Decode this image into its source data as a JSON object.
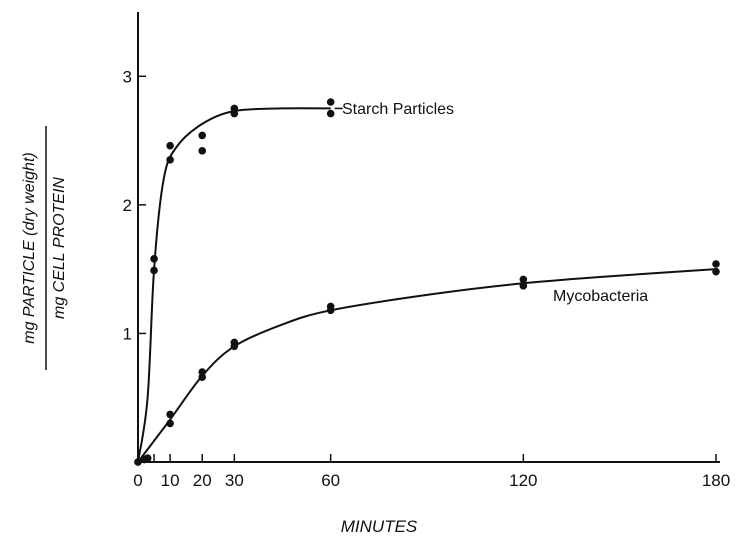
{
  "chart_data": {
    "type": "scatter",
    "title": "",
    "xlabel": "MINUTES",
    "ylabel_numerator": "mg PARTICLE (dry weight)",
    "ylabel_denominator": "mg CELL PROTEIN",
    "xlim": [
      0,
      180
    ],
    "ylim": [
      0,
      3.5
    ],
    "xticks": [
      0,
      5,
      10,
      20,
      30,
      60,
      120,
      180
    ],
    "xtick_labels": [
      "0",
      "",
      "10",
      "20",
      "30",
      "60",
      "120",
      "180"
    ],
    "yticks": [
      1,
      2,
      3
    ],
    "ytick_labels": [
      "1",
      "2",
      "3"
    ],
    "grid": false,
    "legend": "none",
    "series": [
      {
        "name": "Starch Particles",
        "points": [
          [
            0,
            0
          ],
          [
            2,
            0.02
          ],
          [
            3,
            0.03
          ],
          [
            5,
            1.58
          ],
          [
            5,
            1.49
          ],
          [
            10,
            2.46
          ],
          [
            10,
            2.35
          ],
          [
            20,
            2.54
          ],
          [
            20,
            2.42
          ],
          [
            30,
            2.75
          ],
          [
            30,
            2.71
          ],
          [
            60,
            2.8
          ],
          [
            60,
            2.71
          ]
        ],
        "curve": [
          [
            0,
            0
          ],
          [
            3,
            0.5
          ],
          [
            5,
            1.5
          ],
          [
            8,
            2.2
          ],
          [
            12,
            2.45
          ],
          [
            20,
            2.63
          ],
          [
            30,
            2.73
          ],
          [
            45,
            2.75
          ],
          [
            60,
            2.75
          ]
        ]
      },
      {
        "name": "Mycobacteria",
        "points": [
          [
            0,
            0
          ],
          [
            2,
            0.02
          ],
          [
            3,
            0.03
          ],
          [
            10,
            0.37
          ],
          [
            10,
            0.3
          ],
          [
            20,
            0.7
          ],
          [
            20,
            0.66
          ],
          [
            30,
            0.93
          ],
          [
            30,
            0.9
          ],
          [
            60,
            1.21
          ],
          [
            60,
            1.18
          ],
          [
            120,
            1.42
          ],
          [
            120,
            1.37
          ],
          [
            180,
            1.54
          ],
          [
            180,
            1.48
          ]
        ],
        "curve": [
          [
            0,
            0
          ],
          [
            10,
            0.33
          ],
          [
            20,
            0.67
          ],
          [
            30,
            0.9
          ],
          [
            45,
            1.07
          ],
          [
            60,
            1.18
          ],
          [
            90,
            1.3
          ],
          [
            120,
            1.39
          ],
          [
            150,
            1.45
          ],
          [
            180,
            1.5
          ]
        ]
      }
    ],
    "annotations": [
      "Starch Particles",
      "Mycobacteria"
    ]
  }
}
